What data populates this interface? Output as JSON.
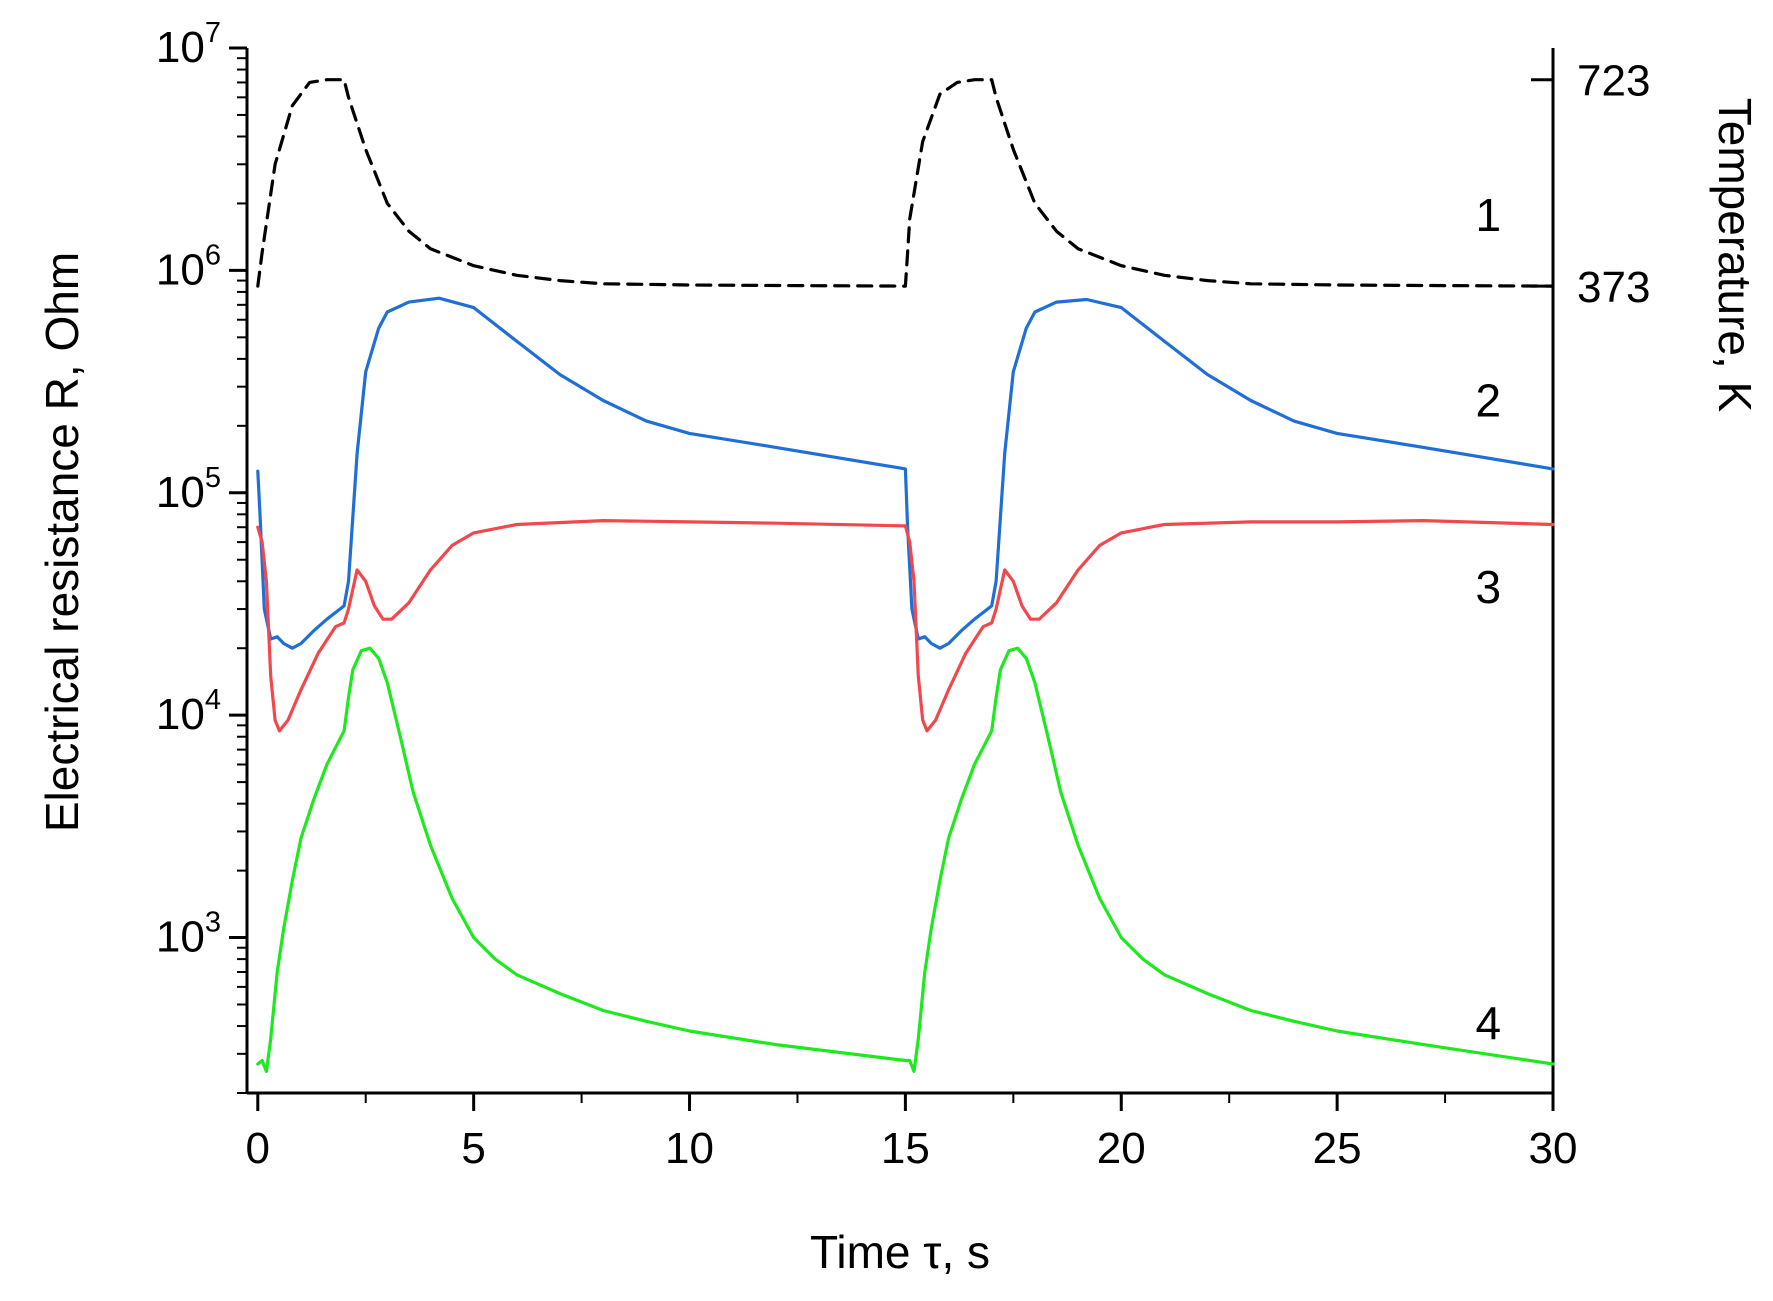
{
  "chart_data": {
    "type": "line",
    "xlabel": "Time τ, s",
    "ylabel": "Electrical resistance R, Ohm",
    "y2label": "Temperature, K",
    "xlim": [
      -0.25,
      30
    ],
    "ylim": [
      200,
      10000000
    ],
    "yscale": "log",
    "x_ticks": [
      0,
      5,
      10,
      15,
      20,
      25,
      30
    ],
    "y_ticks": [
      {
        "value": 1000,
        "base": "10",
        "exp": "3"
      },
      {
        "value": 10000,
        "base": "10",
        "exp": "4"
      },
      {
        "value": 100000,
        "base": "10",
        "exp": "5"
      },
      {
        "value": 1000000,
        "base": "10",
        "exp": "6"
      },
      {
        "value": 10000000,
        "base": "10",
        "exp": "7"
      }
    ],
    "y2_ticks": [
      {
        "label": "723",
        "value": 723,
        "r_equiv": 7200000
      },
      {
        "label": "373",
        "value": 373,
        "r_equiv": 850000
      }
    ],
    "grid": false,
    "colors": {
      "1": "#000000",
      "2": "#1f6fd6",
      "3": "#f0484c",
      "4": "#1ee81e"
    },
    "series": [
      {
        "id": "1",
        "label": "1",
        "axis": "right",
        "dashed": true,
        "label_x": 28.5,
        "label_y": 1500000,
        "x": [
          0,
          0.1,
          0.4,
          0.8,
          1.2,
          1.6,
          2.0,
          2.1,
          2.5,
          3.0,
          3.5,
          4.0,
          5.0,
          6.0,
          7.0,
          8.0,
          10.0,
          12.0,
          15.0,
          15.05,
          15.1,
          15.4,
          15.8,
          16.2,
          16.6,
          17.0,
          17.1,
          17.5,
          18.0,
          18.5,
          19.0,
          20.0,
          21.0,
          22.0,
          23.0,
          25.0,
          27.0,
          30.0
        ],
        "y": [
          850000,
          1200000,
          3000000,
          5500000,
          7000000,
          7200000,
          7200000,
          6000000,
          3500000,
          2000000,
          1500000,
          1250000,
          1050000,
          950000,
          900000,
          870000,
          860000,
          855000,
          850000,
          1200000,
          1700000,
          3800000,
          6200000,
          7000000,
          7200000,
          7200000,
          6000000,
          3500000,
          2000000,
          1500000,
          1250000,
          1050000,
          950000,
          900000,
          870000,
          860000,
          855000,
          850000
        ]
      },
      {
        "id": "2",
        "label": "2",
        "axis": "left",
        "dashed": false,
        "label_x": 28.5,
        "label_y": 220000,
        "x": [
          0,
          0.05,
          0.15,
          0.3,
          0.45,
          0.6,
          0.8,
          1.0,
          1.3,
          1.6,
          2.0,
          2.1,
          2.3,
          2.5,
          2.8,
          3.0,
          3.5,
          4.2,
          5.0,
          6.0,
          7.0,
          8.0,
          9.0,
          10.0,
          12.0,
          15.0,
          15.05,
          15.15,
          15.3,
          15.45,
          15.6,
          15.8,
          16.0,
          16.3,
          16.6,
          17.0,
          17.1,
          17.3,
          17.5,
          17.8,
          18.0,
          18.5,
          19.2,
          20.0,
          21.0,
          22.0,
          23.0,
          24.0,
          25.0,
          27.0,
          30.0
        ],
        "y": [
          125000,
          80000,
          30000,
          22000,
          22500,
          21000,
          20000,
          21000,
          24000,
          27000,
          31000,
          40000,
          150000,
          350000,
          550000,
          650000,
          720000,
          750000,
          680000,
          480000,
          340000,
          260000,
          210000,
          185000,
          160000,
          128000,
          70000,
          30000,
          22000,
          22500,
          21000,
          20000,
          21000,
          24000,
          27000,
          31000,
          40000,
          150000,
          350000,
          550000,
          650000,
          720000,
          740000,
          680000,
          480000,
          340000,
          260000,
          210000,
          185000,
          160000,
          128000
        ]
      },
      {
        "id": "3",
        "label": "3",
        "axis": "left",
        "dashed": false,
        "label_x": 28.5,
        "label_y": 32000,
        "x": [
          0,
          0.1,
          0.2,
          0.3,
          0.4,
          0.5,
          0.7,
          1.0,
          1.4,
          1.8,
          2.0,
          2.1,
          2.3,
          2.5,
          2.7,
          2.9,
          3.1,
          3.5,
          4.0,
          4.5,
          5.0,
          6.0,
          8.0,
          10.0,
          12.0,
          15.0,
          15.1,
          15.2,
          15.3,
          15.4,
          15.5,
          15.7,
          16.0,
          16.4,
          16.8,
          17.0,
          17.1,
          17.3,
          17.5,
          17.7,
          17.9,
          18.1,
          18.5,
          19.0,
          19.5,
          20.0,
          21.0,
          23.0,
          25.0,
          27.0,
          30.0
        ],
        "y": [
          70000,
          60000,
          40000,
          15000,
          9500,
          8500,
          9500,
          13000,
          19000,
          25000,
          26000,
          30000,
          45000,
          40000,
          31000,
          27000,
          27000,
          32000,
          45000,
          58000,
          66000,
          72000,
          75000,
          74000,
          73000,
          71000,
          60000,
          40000,
          15000,
          9500,
          8500,
          9500,
          13000,
          19000,
          25000,
          26000,
          30000,
          45000,
          40000,
          31000,
          27000,
          27000,
          32000,
          45000,
          58000,
          66000,
          72000,
          74000,
          74000,
          75000,
          72000
        ]
      },
      {
        "id": "4",
        "label": "4",
        "axis": "left",
        "dashed": false,
        "label_x": 28.5,
        "label_y": 350,
        "x": [
          0,
          0.1,
          0.2,
          0.3,
          0.45,
          0.6,
          0.8,
          1.0,
          1.3,
          1.6,
          1.9,
          2.0,
          2.1,
          2.2,
          2.4,
          2.6,
          2.8,
          3.0,
          3.3,
          3.6,
          4.0,
          4.5,
          5.0,
          5.5,
          6.0,
          7.0,
          8.0,
          9.0,
          10.0,
          12.0,
          15.0,
          15.1,
          15.2,
          15.3,
          15.45,
          15.6,
          15.8,
          16.0,
          16.3,
          16.6,
          16.9,
          17.0,
          17.1,
          17.2,
          17.4,
          17.6,
          17.8,
          18.0,
          18.3,
          18.6,
          19.0,
          19.5,
          20.0,
          20.5,
          21.0,
          22.0,
          23.0,
          24.0,
          25.0,
          27.0,
          30.0
        ],
        "y": [
          270,
          280,
          250,
          350,
          700,
          1100,
          1800,
          2800,
          4200,
          6000,
          7800,
          8500,
          12000,
          16000,
          19500,
          20000,
          18000,
          14000,
          8000,
          4500,
          2600,
          1500,
          1000,
          800,
          680,
          560,
          470,
          420,
          380,
          330,
          280,
          280,
          250,
          350,
          700,
          1100,
          1800,
          2800,
          4200,
          6000,
          7800,
          8500,
          12000,
          16000,
          19500,
          20000,
          18000,
          14000,
          8000,
          4500,
          2600,
          1500,
          1000,
          800,
          680,
          560,
          470,
          420,
          380,
          330,
          270
        ]
      }
    ]
  }
}
